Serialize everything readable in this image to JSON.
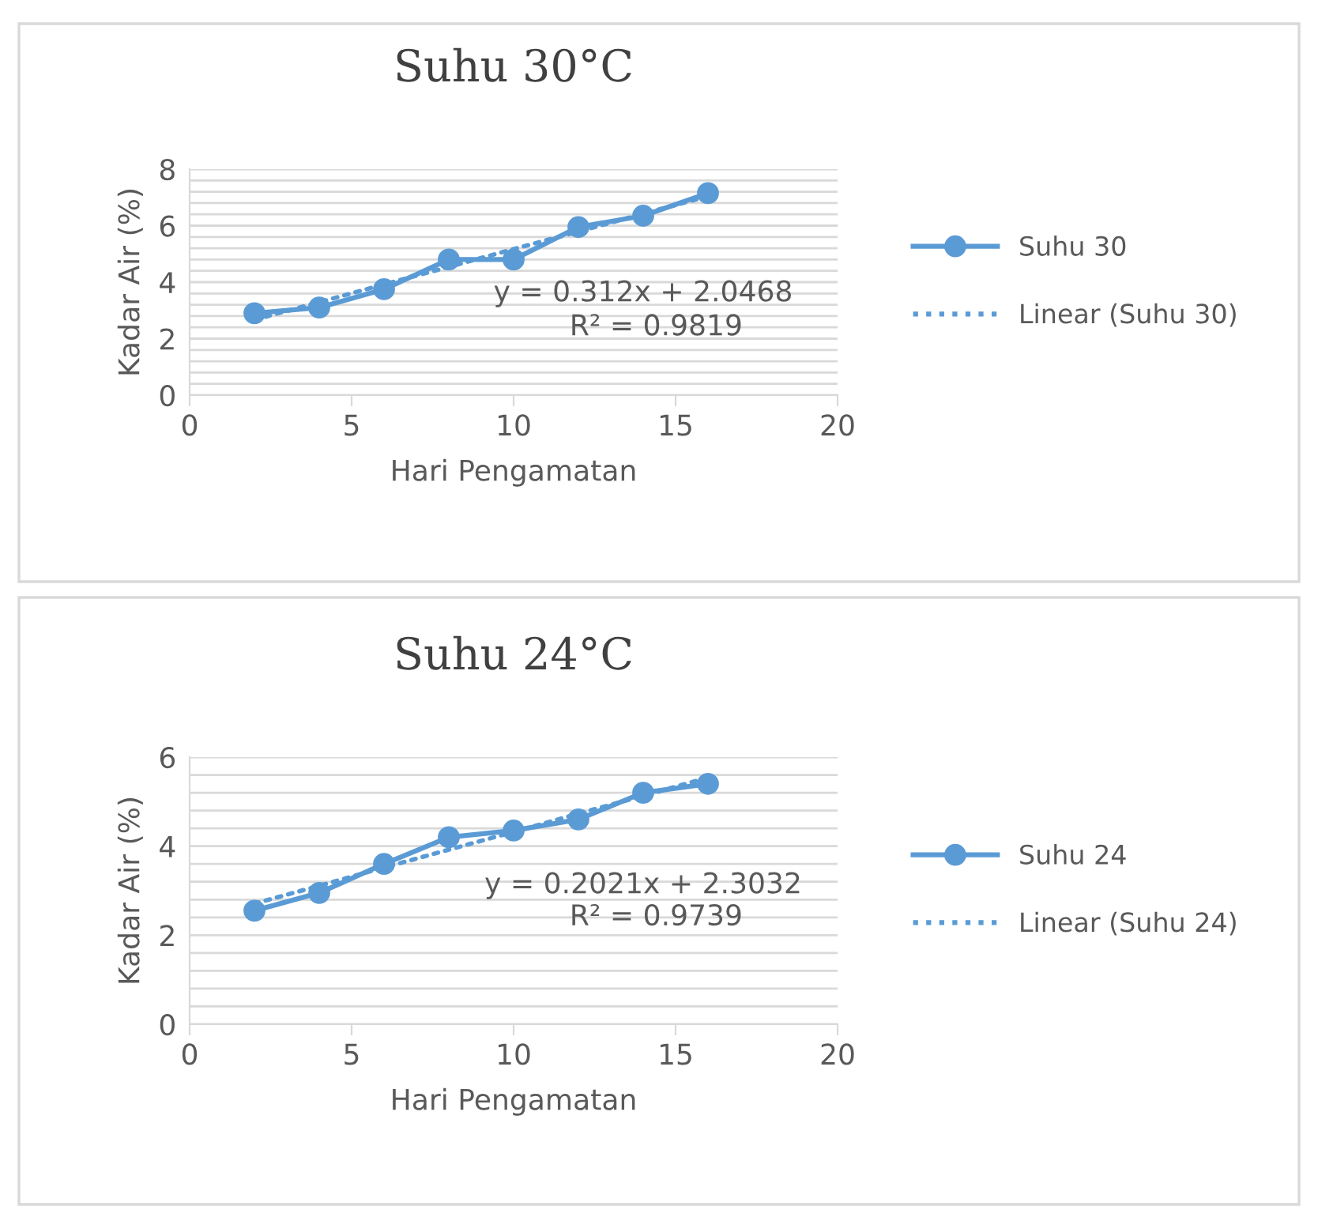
{
  "chart_data": [
    {
      "type": "line",
      "title": "Suhu 30°C",
      "xlabel": "Hari Pengamatan",
      "ylabel": "Kadar Air (%)",
      "x": [
        2,
        4,
        6,
        8,
        10,
        12,
        14,
        16
      ],
      "series": [
        {
          "name": "Suhu 30",
          "color": "#5b9bd5",
          "marker": "circle",
          "line_style": "solid",
          "values": [
            2.9,
            3.1,
            3.75,
            4.8,
            4.8,
            5.95,
            6.35,
            7.15
          ]
        },
        {
          "name": "Linear (Suhu 30)",
          "color": "#5b9bd5",
          "marker": "none",
          "line_style": "dotted",
          "values": [
            2.67,
            3.29,
            3.92,
            4.54,
            5.17,
            5.79,
            6.42,
            7.04
          ]
        }
      ],
      "annotations": [
        "y = 0.312x + 2.0468",
        "R² = 0.9819"
      ],
      "xlim": [
        0,
        20
      ],
      "xticks": [
        0,
        5,
        10,
        15,
        20
      ],
      "ylim": [
        0,
        8
      ],
      "yticks": [
        0,
        {
          "value": 0.4,
          "label": null
        },
        {
          "value": 0.8,
          "label": null
        },
        {
          "value": 1.2,
          "label": null
        },
        {
          "value": 1.6,
          "label": null
        },
        2,
        {
          "value": 2.4,
          "label": null
        },
        {
          "value": 2.8,
          "label": null
        },
        {
          "value": 3.2,
          "label": null
        },
        {
          "value": 3.6,
          "label": null
        },
        4,
        {
          "value": 4.4,
          "label": null
        },
        {
          "value": 4.8,
          "label": null
        },
        {
          "value": 5.2,
          "label": null
        },
        {
          "value": 5.6,
          "label": null
        },
        6,
        {
          "value": 6.4,
          "label": null
        },
        {
          "value": 6.8,
          "label": null
        },
        {
          "value": 7.2,
          "label": null
        },
        {
          "value": 7.6,
          "label": null
        },
        8
      ],
      "grid": "y",
      "legend": "right"
    },
    {
      "type": "line",
      "title": "Suhu 24°C",
      "xlabel": "Hari Pengamatan",
      "ylabel": "Kadar Air (%)",
      "x": [
        2,
        4,
        6,
        8,
        10,
        12,
        14,
        16
      ],
      "series": [
        {
          "name": "Suhu 24",
          "color": "#5b9bd5",
          "marker": "circle",
          "line_style": "solid",
          "values": [
            2.55,
            2.95,
            3.6,
            4.2,
            4.35,
            4.6,
            5.2,
            5.4
          ]
        },
        {
          "name": "Linear (Suhu 24)",
          "color": "#5b9bd5",
          "marker": "none",
          "line_style": "dotted",
          "values": [
            2.71,
            3.11,
            3.52,
            3.92,
            4.32,
            4.73,
            5.13,
            5.54
          ]
        }
      ],
      "annotations": [
        "y = 0.2021x + 2.3032",
        "R² = 0.9739"
      ],
      "xlim": [
        0,
        20
      ],
      "xticks": [
        0,
        5,
        10,
        15,
        20
      ],
      "ylim": [
        0,
        6
      ],
      "yticks": [
        0,
        {
          "value": 0.4,
          "label": null
        },
        {
          "value": 0.8,
          "label": null
        },
        {
          "value": 1.2,
          "label": null
        },
        {
          "value": 1.6,
          "label": null
        },
        2,
        {
          "value": 2.4,
          "label": null
        },
        {
          "value": 2.8,
          "label": null
        },
        {
          "value": 3.2,
          "label": null
        },
        {
          "value": 3.6,
          "label": null
        },
        4,
        {
          "value": 4.4,
          "label": null
        },
        {
          "value": 4.8,
          "label": null
        },
        {
          "value": 5.2,
          "label": null
        },
        {
          "value": 5.6,
          "label": null
        },
        6
      ],
      "grid": "y",
      "legend": "right"
    }
  ]
}
